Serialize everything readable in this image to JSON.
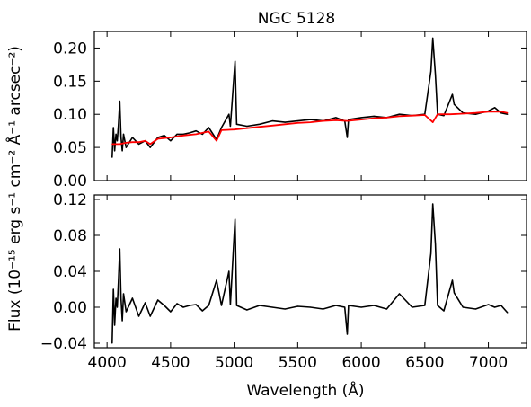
{
  "chart_data": [
    {
      "panel": "top",
      "type": "line",
      "title": "NGC 5128",
      "xlim": [
        3900,
        7300
      ],
      "ylim": [
        0.0,
        0.225
      ],
      "yticks": [
        0.0,
        0.05,
        0.1,
        0.15,
        0.2
      ],
      "ytick_labels": [
        "0.00",
        "0.05",
        "0.10",
        "0.15",
        "0.20"
      ],
      "series": [
        {
          "color": "#000000",
          "x": [
            4040,
            4050,
            4060,
            4070,
            4080,
            4090,
            4100,
            4110,
            4120,
            4130,
            4150,
            4200,
            4250,
            4300,
            4340,
            4400,
            4450,
            4500,
            4550,
            4600,
            4650,
            4700,
            4750,
            4800,
            4861,
            4900,
            4959,
            4970,
            5007,
            5020,
            5100,
            5200,
            5300,
            5400,
            5500,
            5600,
            5700,
            5800,
            5870,
            5890,
            5900,
            6000,
            6100,
            6200,
            6300,
            6400,
            6500,
            6548,
            6563,
            6583,
            6600,
            6650,
            6717,
            6731,
            6800,
            6900,
            7000,
            7050,
            7100,
            7150
          ],
          "y": [
            0.035,
            0.08,
            0.045,
            0.07,
            0.06,
            0.085,
            0.12,
            0.065,
            0.045,
            0.07,
            0.05,
            0.065,
            0.055,
            0.06,
            0.05,
            0.065,
            0.068,
            0.06,
            0.07,
            0.07,
            0.072,
            0.075,
            0.07,
            0.08,
            0.062,
            0.08,
            0.1,
            0.082,
            0.18,
            0.085,
            0.082,
            0.085,
            0.09,
            0.088,
            0.09,
            0.092,
            0.09,
            0.095,
            0.09,
            0.065,
            0.092,
            0.095,
            0.097,
            0.095,
            0.1,
            0.098,
            0.1,
            0.165,
            0.215,
            0.16,
            0.1,
            0.098,
            0.13,
            0.115,
            0.102,
            0.1,
            0.105,
            0.11,
            0.102,
            0.1
          ]
        },
        {
          "color": "#ff0000",
          "x": [
            4040,
            4100,
            4150,
            4200,
            4250,
            4300,
            4340,
            4400,
            4500,
            4600,
            4700,
            4800,
            4861,
            4900,
            5000,
            5100,
            5200,
            5300,
            5400,
            5500,
            5600,
            5700,
            5800,
            5890,
            6000,
            6100,
            6200,
            6300,
            6400,
            6500,
            6563,
            6600,
            6700,
            6800,
            6900,
            7000,
            7100,
            7150
          ],
          "y": [
            0.055,
            0.055,
            0.057,
            0.058,
            0.058,
            0.06,
            0.055,
            0.063,
            0.065,
            0.068,
            0.07,
            0.074,
            0.06,
            0.076,
            0.077,
            0.079,
            0.081,
            0.083,
            0.085,
            0.087,
            0.088,
            0.09,
            0.091,
            0.09,
            0.092,
            0.094,
            0.095,
            0.097,
            0.098,
            0.099,
            0.088,
            0.1,
            0.1,
            0.101,
            0.102,
            0.104,
            0.104,
            0.102
          ]
        }
      ]
    },
    {
      "panel": "bottom",
      "type": "line",
      "xlabel": "Wavelength (Å)",
      "ylabel": "Flux (10⁻¹⁵ erg s⁻¹ cm⁻² Å⁻¹ arcsec⁻²)",
      "xlim": [
        3900,
        7300
      ],
      "ylim": [
        -0.045,
        0.125
      ],
      "xticks": [
        4000,
        4500,
        5000,
        5500,
        6000,
        6500,
        7000
      ],
      "xtick_labels": [
        "4000",
        "4500",
        "5000",
        "5500",
        "6000",
        "6500",
        "7000"
      ],
      "yticks": [
        -0.04,
        0.0,
        0.04,
        0.08,
        0.12
      ],
      "ytick_labels": [
        "−0.04",
        "0.00",
        "0.04",
        "0.08",
        "0.12"
      ],
      "series": [
        {
          "color": "#000000",
          "x": [
            4040,
            4050,
            4060,
            4070,
            4080,
            4090,
            4100,
            4110,
            4120,
            4130,
            4150,
            4200,
            4250,
            4300,
            4340,
            4400,
            4450,
            4500,
            4550,
            4600,
            4650,
            4700,
            4750,
            4800,
            4861,
            4900,
            4959,
            4970,
            5007,
            5020,
            5100,
            5200,
            5300,
            5400,
            5500,
            5600,
            5700,
            5800,
            5870,
            5890,
            5900,
            6000,
            6100,
            6200,
            6300,
            6400,
            6500,
            6548,
            6563,
            6583,
            6600,
            6650,
            6717,
            6731,
            6800,
            6900,
            7000,
            7050,
            7100,
            7150
          ],
          "y": [
            -0.04,
            0.02,
            -0.02,
            0.01,
            0.0,
            0.03,
            0.065,
            0.01,
            -0.015,
            0.015,
            -0.005,
            0.01,
            -0.01,
            0.005,
            -0.01,
            0.008,
            0.002,
            -0.005,
            0.004,
            0.0,
            0.002,
            0.003,
            -0.004,
            0.002,
            0.03,
            0.002,
            0.04,
            0.003,
            0.098,
            0.002,
            -0.003,
            0.002,
            0.0,
            -0.002,
            0.001,
            0.0,
            -0.002,
            0.002,
            0.0,
            -0.03,
            0.002,
            0.0,
            0.002,
            -0.002,
            0.015,
            0.0,
            0.002,
            0.06,
            0.115,
            0.07,
            0.002,
            -0.004,
            0.03,
            0.016,
            0.0,
            -0.002,
            0.003,
            0.0,
            0.002,
            -0.006
          ]
        }
      ]
    }
  ]
}
